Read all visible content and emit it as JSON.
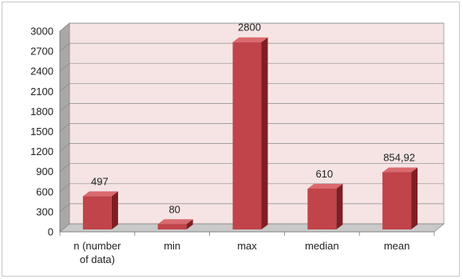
{
  "chart_data": {
    "type": "bar",
    "style": "3d-column",
    "title": "",
    "xlabel": "",
    "ylabel": "",
    "categories": [
      [
        "n (number",
        "of data)"
      ],
      [
        "min"
      ],
      [
        "max"
      ],
      [
        "median"
      ],
      [
        "mean"
      ]
    ],
    "values": [
      497,
      80,
      2800,
      610,
      854.92
    ],
    "data_labels": [
      "497",
      "80",
      "2800",
      "610",
      "854,92"
    ],
    "ylim": [
      0,
      3000
    ],
    "yticks": [
      0,
      300,
      600,
      900,
      1200,
      1500,
      1800,
      2100,
      2400,
      2700,
      3000
    ],
    "grid": true,
    "legend": "none",
    "colors": {
      "bar_front": "#c0444a",
      "bar_side": "#7e1f24",
      "bar_top": "#d96a6f",
      "back_wall": "#f6e4e4",
      "side_wall": "#a8a8a8",
      "floor": "#c9c9c9",
      "gridline": "#8a8a8a"
    }
  }
}
